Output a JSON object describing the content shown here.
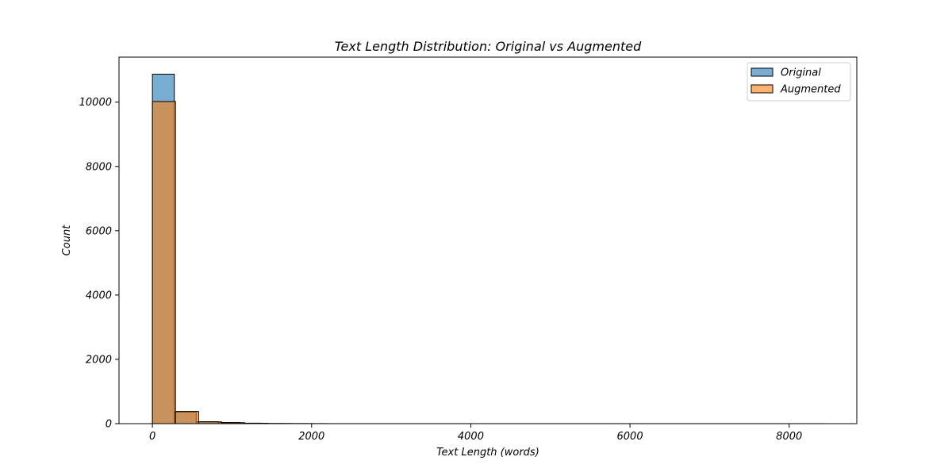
{
  "chart_data": {
    "type": "bar",
    "title": "Text Length Distribution: Original vs Augmented",
    "xlabel": "Text Length (words)",
    "ylabel": "Count",
    "xlim": [
      -420,
      8850
    ],
    "ylim": [
      0,
      11400
    ],
    "xticks": [
      0,
      2000,
      4000,
      6000,
      8000
    ],
    "yticks": [
      0,
      2000,
      4000,
      6000,
      8000,
      10000
    ],
    "xtick_labels": [
      "0",
      "2000",
      "4000",
      "6000",
      "8000"
    ],
    "ytick_labels": [
      "0",
      "2000",
      "4000",
      "6000",
      "8000",
      "10000"
    ],
    "grid": false,
    "legend_position": "top-right",
    "series": [
      {
        "name": "Original",
        "color": "#1f77b4",
        "alpha": 0.6,
        "bins": [
          {
            "x0": 0,
            "x1": 275,
            "count": 10870
          },
          {
            "x0": 275,
            "x1": 550,
            "count": 360
          },
          {
            "x0": 550,
            "x1": 825,
            "count": 60
          },
          {
            "x0": 825,
            "x1": 1100,
            "count": 35
          },
          {
            "x0": 1100,
            "x1": 1375,
            "count": 15
          },
          {
            "x0": 1375,
            "x1": 1650,
            "count": 5
          },
          {
            "x0": 1650,
            "x1": 1925,
            "count": 3
          },
          {
            "x0": 1925,
            "x1": 2200,
            "count": 2
          }
        ]
      },
      {
        "name": "Augmented",
        "color": "#ff7f0e",
        "alpha": 0.6,
        "bins": [
          {
            "x0": 0,
            "x1": 290,
            "count": 10020
          },
          {
            "x0": 290,
            "x1": 580,
            "count": 380
          },
          {
            "x0": 580,
            "x1": 870,
            "count": 55
          },
          {
            "x0": 870,
            "x1": 1160,
            "count": 30
          },
          {
            "x0": 1160,
            "x1": 1450,
            "count": 12
          },
          {
            "x0": 1450,
            "x1": 1740,
            "count": 4
          },
          {
            "x0": 1740,
            "x1": 2030,
            "count": 2
          },
          {
            "x0": 2030,
            "x1": 8450,
            "count": 1
          }
        ]
      }
    ]
  }
}
